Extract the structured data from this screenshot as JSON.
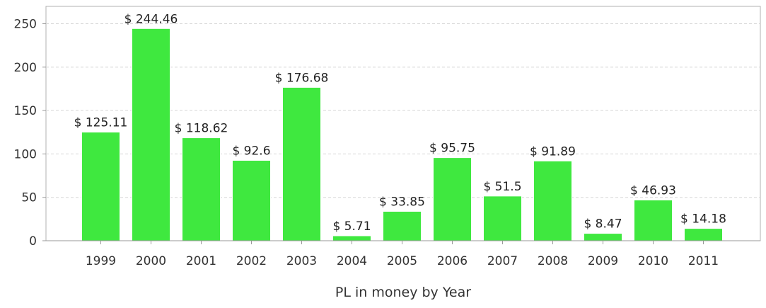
{
  "chart_data": {
    "type": "bar",
    "categories": [
      "1999",
      "2000",
      "2001",
      "2002",
      "2003",
      "2004",
      "2005",
      "2006",
      "2007",
      "2008",
      "2009",
      "2010",
      "2011"
    ],
    "values": [
      125.11,
      244.46,
      118.62,
      92.6,
      176.68,
      5.71,
      33.85,
      95.75,
      51.5,
      91.89,
      8.47,
      46.93,
      14.18
    ],
    "data_labels": [
      "$ 125.11",
      "$ 244.46",
      "$ 118.62",
      "$ 92.6",
      "$ 176.68",
      "$ 5.71",
      "$ 33.85",
      "$ 95.75",
      "$ 51.5",
      "$ 91.89",
      "$ 8.47",
      "$ 46.93",
      "$ 14.18"
    ],
    "xlabel": "PL in money by Year",
    "ylabel": "",
    "ylim": [
      0,
      270
    ],
    "yticks": [
      0,
      50,
      100,
      150,
      200,
      250
    ],
    "grid": true,
    "legend": "none",
    "bar_color": "#3fe83f",
    "grid_color": "#d6d6d6",
    "axis_color": "#9a9a9a"
  }
}
